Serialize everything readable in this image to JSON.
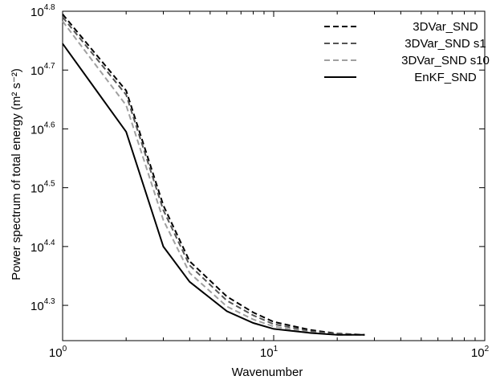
{
  "chart_data": {
    "type": "line",
    "xscale": "log",
    "yscale": "log",
    "xlabel": "Wavenumber",
    "ylabel": "Power spectrum of total energy (m² s⁻²)",
    "xlim": [
      1,
      100
    ],
    "ylim": [
      4.24,
      4.8
    ],
    "ylim_note": "log10 exponents; axis prints 10^exponent",
    "x_ticks": [
      {
        "base": "10",
        "exp": "0",
        "value": 1
      },
      {
        "base": "10",
        "exp": "1",
        "value": 10
      },
      {
        "base": "10",
        "exp": "2",
        "value": 100
      }
    ],
    "y_ticks": [
      {
        "base": "10",
        "exp": "4.8",
        "value": 4.8
      },
      {
        "base": "10",
        "exp": "4.7",
        "value": 4.7
      },
      {
        "base": "10",
        "exp": "4.6",
        "value": 4.6
      },
      {
        "base": "10",
        "exp": "4.5",
        "value": 4.5
      },
      {
        "base": "10",
        "exp": "4.4",
        "value": 4.4
      },
      {
        "base": "10",
        "exp": "4.3",
        "value": 4.3
      }
    ],
    "grid": false,
    "legend_position": "top-right",
    "series": [
      {
        "name": "3DVar_SND",
        "color": "#000000",
        "dash": "dashed",
        "x": [
          1,
          2,
          3,
          4,
          6,
          8,
          10,
          15,
          20,
          27
        ],
        "y": [
          4.795,
          4.665,
          4.47,
          4.375,
          4.315,
          4.288,
          4.272,
          4.258,
          4.252,
          4.25
        ]
      },
      {
        "name": "3DVar_SND s1",
        "color": "#555555",
        "dash": "dashed",
        "x": [
          1,
          2,
          3,
          4,
          6,
          8,
          10,
          15,
          20,
          27
        ],
        "y": [
          4.79,
          4.658,
          4.462,
          4.368,
          4.308,
          4.283,
          4.268,
          4.256,
          4.251,
          4.25
        ]
      },
      {
        "name": "3DVar_SND s10",
        "color": "#a0a0a0",
        "dash": "dashed",
        "x": [
          1,
          2,
          3,
          4,
          6,
          8,
          10,
          15,
          20,
          27
        ],
        "y": [
          4.783,
          4.64,
          4.445,
          4.355,
          4.298,
          4.276,
          4.264,
          4.254,
          4.25,
          4.25
        ]
      },
      {
        "name": "EnKF_SND",
        "color": "#000000",
        "dash": "solid",
        "x": [
          1,
          2,
          3,
          4,
          6,
          8,
          10,
          15,
          20,
          27
        ],
        "y": [
          4.745,
          4.595,
          4.4,
          4.34,
          4.29,
          4.27,
          4.26,
          4.253,
          4.25,
          4.25
        ]
      }
    ]
  }
}
